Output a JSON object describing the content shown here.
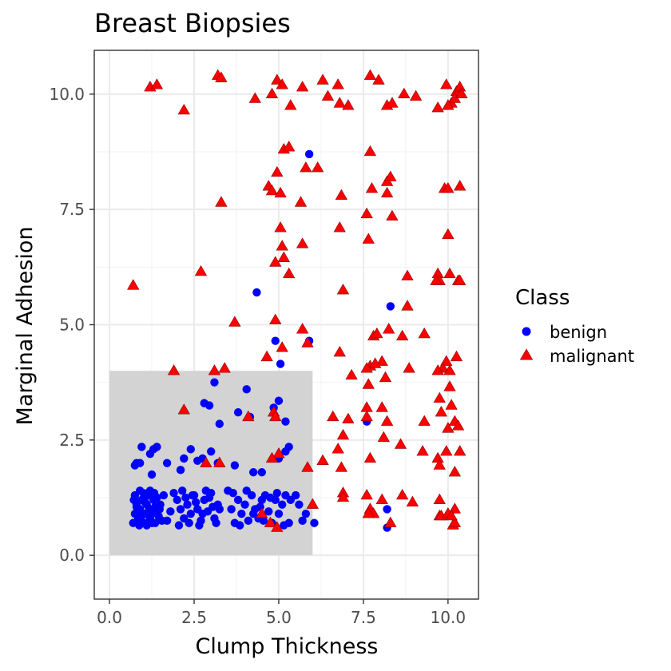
{
  "chart_data": {
    "type": "scatter",
    "title": "Breast Biopsies",
    "xlabel": "Clump Thickness",
    "ylabel": "Marginal Adhesion",
    "xlim": [
      -0.45,
      10.9
    ],
    "ylim": [
      -0.95,
      10.95
    ],
    "x_ticks": [
      0.0,
      2.5,
      5.0,
      7.5,
      10.0
    ],
    "x_tick_labels": [
      "0.0",
      "2.5",
      "5.0",
      "7.5",
      "10.0"
    ],
    "y_ticks": [
      0.0,
      2.5,
      5.0,
      7.5,
      10.0
    ],
    "y_tick_labels": [
      "0.0",
      "2.5",
      "5.0",
      "7.5",
      "10.0"
    ],
    "grid": true,
    "shaded_region": {
      "x": [
        0,
        6
      ],
      "y": [
        0,
        4
      ],
      "color": "#d3d3d3"
    },
    "legend": {
      "title": "Class",
      "placement": "right",
      "entries": [
        {
          "label": "benign",
          "color": "#0000ff",
          "shape": "circle"
        },
        {
          "label": "malignant",
          "color": "#ff0000",
          "shape": "triangle"
        }
      ]
    },
    "series": [
      {
        "name": "benign",
        "color": "#0000ff",
        "shape": "circle",
        "points": [
          [
            0.7,
            0.7
          ],
          [
            0.75,
            0.9
          ],
          [
            0.8,
            1.1
          ],
          [
            0.75,
            1.3
          ],
          [
            0.85,
            0.8
          ],
          [
            0.9,
            1.0
          ],
          [
            0.95,
            1.2
          ],
          [
            1.0,
            0.7
          ],
          [
            1.05,
            0.9
          ],
          [
            1.1,
            1.1
          ],
          [
            1.15,
            1.3
          ],
          [
            1.2,
            0.8
          ],
          [
            1.25,
            1.0
          ],
          [
            1.3,
            1.2
          ],
          [
            1.35,
            0.7
          ],
          [
            1.4,
            0.9
          ],
          [
            0.9,
            1.4
          ],
          [
            1.0,
            1.35
          ],
          [
            1.1,
            0.65
          ],
          [
            1.2,
            1.4
          ],
          [
            1.3,
            0.95
          ],
          [
            1.4,
            1.25
          ],
          [
            1.5,
            1.1
          ],
          [
            1.55,
            0.75
          ],
          [
            1.6,
            1.3
          ],
          [
            0.8,
            1.05
          ],
          [
            0.95,
            0.85
          ],
          [
            1.05,
            1.15
          ],
          [
            1.15,
            0.95
          ],
          [
            1.25,
            0.7
          ],
          [
            1.35,
            1.05
          ],
          [
            1.45,
            0.85
          ],
          [
            0.72,
            1.2
          ],
          [
            0.88,
            0.65
          ],
          [
            1.02,
            1.25
          ],
          [
            1.18,
            0.75
          ],
          [
            1.32,
            1.35
          ],
          [
            1.48,
            1.0
          ],
          [
            0.95,
            2.35
          ],
          [
            0.9,
            2.0
          ],
          [
            1.2,
            2.2
          ],
          [
            1.3,
            2.3
          ],
          [
            0.8,
            2.0
          ],
          [
            1.25,
            1.75
          ],
          [
            0.75,
            1.95
          ],
          [
            1.4,
            2.35
          ],
          [
            1.9,
            1.35
          ],
          [
            2.0,
            1.2
          ],
          [
            2.1,
            1.0
          ],
          [
            2.2,
            0.8
          ],
          [
            2.3,
            1.1
          ],
          [
            2.4,
            0.9
          ],
          [
            1.8,
            0.95
          ],
          [
            1.7,
            0.75
          ],
          [
            2.5,
            1.3
          ],
          [
            2.6,
            1.0
          ],
          [
            2.7,
            0.75
          ],
          [
            2.8,
            1.2
          ],
          [
            2.9,
            0.95
          ],
          [
            3.0,
            1.35
          ],
          [
            3.1,
            0.8
          ],
          [
            3.2,
            1.1
          ],
          [
            2.15,
            1.4
          ],
          [
            2.35,
            0.7
          ],
          [
            2.55,
            1.15
          ],
          [
            2.75,
            0.9
          ],
          [
            2.95,
            1.25
          ],
          [
            3.15,
            0.7
          ],
          [
            3.25,
            1.0
          ],
          [
            2.05,
            0.65
          ],
          [
            2.25,
            1.25
          ],
          [
            2.45,
            1.3
          ],
          [
            2.65,
            0.65
          ],
          [
            2.85,
            1.4
          ],
          [
            3.05,
            1.05
          ],
          [
            2.2,
            2.1
          ],
          [
            2.1,
            1.85
          ],
          [
            2.4,
            2.3
          ],
          [
            2.6,
            2.05
          ],
          [
            2.75,
            2.1
          ],
          [
            3.0,
            2.25
          ],
          [
            3.2,
            2.0
          ],
          [
            1.7,
            2.0
          ],
          [
            2.8,
            3.3
          ],
          [
            3.1,
            3.75
          ],
          [
            2.95,
            3.25
          ],
          [
            3.25,
            2.85
          ],
          [
            3.5,
            1.4
          ],
          [
            3.6,
            1.0
          ],
          [
            3.7,
            0.7
          ],
          [
            3.8,
            1.2
          ],
          [
            3.9,
            0.9
          ],
          [
            4.0,
            1.1
          ],
          [
            4.1,
            0.75
          ],
          [
            4.2,
            1.3
          ],
          [
            4.3,
            1.0
          ],
          [
            4.4,
            0.8
          ],
          [
            4.5,
            1.2
          ],
          [
            3.65,
            1.35
          ],
          [
            3.85,
            0.65
          ],
          [
            4.05,
            1.4
          ],
          [
            4.25,
            0.9
          ],
          [
            4.45,
            1.05
          ],
          [
            4.6,
            1.3
          ],
          [
            4.7,
            0.95
          ],
          [
            4.8,
            0.7
          ],
          [
            4.9,
            1.2
          ],
          [
            5.0,
            0.9
          ],
          [
            5.1,
            1.1
          ],
          [
            5.2,
            1.3
          ],
          [
            5.3,
            0.7
          ],
          [
            4.55,
            0.75
          ],
          [
            4.75,
            1.25
          ],
          [
            4.95,
            1.35
          ],
          [
            5.15,
            0.65
          ],
          [
            5.35,
            1.2
          ],
          [
            3.7,
            1.95
          ],
          [
            3.8,
            3.1
          ],
          [
            4.05,
            3.6
          ],
          [
            4.15,
            3.0
          ],
          [
            4.25,
            1.8
          ],
          [
            4.5,
            1.8
          ],
          [
            4.35,
            5.7
          ],
          [
            4.9,
            4.65
          ],
          [
            5.05,
            4.15
          ],
          [
            4.85,
            3.2
          ],
          [
            5.0,
            3.35
          ],
          [
            5.2,
            2.9
          ],
          [
            5.3,
            2.35
          ],
          [
            5.2,
            2.25
          ],
          [
            5.0,
            2.1
          ],
          [
            5.6,
            1.1
          ],
          [
            5.8,
            0.9
          ],
          [
            6.05,
            0.7
          ],
          [
            5.7,
            0.75
          ],
          [
            5.5,
            1.3
          ],
          [
            5.9,
            4.65
          ],
          [
            5.9,
            8.7
          ],
          [
            7.6,
            2.9
          ],
          [
            8.2,
            1.0
          ],
          [
            8.2,
            0.6
          ],
          [
            8.3,
            5.4
          ]
        ]
      },
      {
        "name": "malignant",
        "color": "#ff0000",
        "shape": "triangle",
        "points": [
          [
            1.2,
            10.15
          ],
          [
            1.4,
            10.2
          ],
          [
            2.2,
            9.65
          ],
          [
            3.2,
            10.4
          ],
          [
            3.3,
            10.35
          ],
          [
            4.3,
            9.9
          ],
          [
            4.8,
            10.0
          ],
          [
            4.95,
            10.3
          ],
          [
            5.1,
            10.2
          ],
          [
            5.35,
            9.75
          ],
          [
            5.7,
            10.15
          ],
          [
            6.3,
            10.3
          ],
          [
            6.45,
            9.95
          ],
          [
            6.75,
            10.2
          ],
          [
            6.8,
            9.8
          ],
          [
            7.05,
            9.75
          ],
          [
            7.7,
            10.4
          ],
          [
            7.95,
            10.3
          ],
          [
            8.2,
            9.75
          ],
          [
            8.35,
            9.8
          ],
          [
            8.7,
            10.0
          ],
          [
            9.05,
            9.95
          ],
          [
            9.7,
            9.7
          ],
          [
            9.95,
            10.2
          ],
          [
            10.1,
            9.8
          ],
          [
            10.25,
            10.05
          ],
          [
            10.35,
            10.15
          ],
          [
            10.2,
            9.9
          ],
          [
            10.4,
            10.0
          ],
          [
            10.0,
            9.75
          ],
          [
            0.7,
            5.85
          ],
          [
            2.7,
            6.15
          ],
          [
            3.3,
            7.65
          ],
          [
            3.7,
            5.05
          ],
          [
            4.7,
            8.0
          ],
          [
            4.8,
            7.9
          ],
          [
            4.95,
            8.3
          ],
          [
            5.05,
            7.85
          ],
          [
            5.15,
            8.8
          ],
          [
            5.3,
            8.85
          ],
          [
            5.05,
            7.1
          ],
          [
            5.1,
            6.7
          ],
          [
            5.15,
            6.45
          ],
          [
            5.3,
            6.1
          ],
          [
            4.9,
            6.35
          ],
          [
            5.65,
            7.65
          ],
          [
            5.8,
            8.4
          ],
          [
            6.15,
            8.4
          ],
          [
            5.7,
            6.75
          ],
          [
            4.9,
            5.1
          ],
          [
            5.7,
            4.9
          ],
          [
            4.65,
            4.3
          ],
          [
            5.1,
            4.5
          ],
          [
            5.85,
            4.6
          ],
          [
            6.8,
            7.1
          ],
          [
            6.85,
            7.8
          ],
          [
            6.9,
            5.75
          ],
          [
            6.8,
            4.4
          ],
          [
            7.6,
            7.4
          ],
          [
            7.65,
            6.85
          ],
          [
            7.7,
            8.75
          ],
          [
            7.75,
            7.95
          ],
          [
            8.2,
            8.1
          ],
          [
            8.3,
            8.2
          ],
          [
            8.35,
            7.35
          ],
          [
            8.2,
            7.85
          ],
          [
            8.8,
            6.05
          ],
          [
            8.8,
            5.4
          ],
          [
            8.65,
            4.75
          ],
          [
            8.25,
            4.9
          ],
          [
            7.8,
            4.75
          ],
          [
            7.9,
            4.8
          ],
          [
            8.05,
            4.2
          ],
          [
            7.7,
            4.1
          ],
          [
            7.85,
            4.15
          ],
          [
            7.6,
            4.05
          ],
          [
            7.15,
            3.9
          ],
          [
            7.65,
            3.7
          ],
          [
            8.15,
            3.85
          ],
          [
            8.85,
            4.05
          ],
          [
            9.3,
            4.8
          ],
          [
            9.7,
            6.1
          ],
          [
            9.75,
            5.95
          ],
          [
            9.65,
            5.95
          ],
          [
            10.05,
            6.1
          ],
          [
            10.3,
            5.95
          ],
          [
            10.35,
            5.95
          ],
          [
            10.0,
            6.95
          ],
          [
            9.9,
            7.95
          ],
          [
            10.0,
            7.95
          ],
          [
            10.35,
            8.0
          ],
          [
            9.95,
            4.2
          ],
          [
            9.85,
            4.05
          ],
          [
            9.7,
            4.0
          ],
          [
            10.05,
            4.0
          ],
          [
            10.25,
            4.3
          ],
          [
            10.05,
            3.65
          ],
          [
            10.1,
            3.25
          ],
          [
            9.75,
            3.4
          ],
          [
            9.8,
            3.1
          ],
          [
            10.2,
            2.9
          ],
          [
            10.3,
            2.8
          ],
          [
            10.0,
            2.75
          ],
          [
            10.35,
            2.25
          ],
          [
            9.95,
            2.25
          ],
          [
            9.7,
            2.1
          ],
          [
            9.75,
            1.95
          ],
          [
            10.2,
            1.8
          ],
          [
            9.25,
            2.25
          ],
          [
            9.3,
            2.9
          ],
          [
            8.6,
            2.4
          ],
          [
            8.1,
            2.55
          ],
          [
            8.2,
            2.9
          ],
          [
            8.05,
            3.2
          ],
          [
            7.6,
            3.2
          ],
          [
            7.6,
            3.0
          ],
          [
            7.05,
            2.95
          ],
          [
            6.9,
            2.6
          ],
          [
            6.75,
            2.3
          ],
          [
            6.6,
            3.0
          ],
          [
            7.7,
            2.1
          ],
          [
            6.85,
            1.9
          ],
          [
            6.3,
            2.05
          ],
          [
            6.9,
            1.35
          ],
          [
            6.9,
            1.25
          ],
          [
            7.6,
            1.3
          ],
          [
            7.7,
            1.0
          ],
          [
            8.05,
            1.2
          ],
          [
            7.8,
            0.9
          ],
          [
            7.65,
            0.9
          ],
          [
            8.65,
            1.3
          ],
          [
            8.95,
            1.15
          ],
          [
            8.3,
            0.7
          ],
          [
            9.75,
            1.2
          ],
          [
            9.75,
            0.85
          ],
          [
            9.8,
            0.85
          ],
          [
            10.2,
            1.0
          ],
          [
            10.15,
            0.65
          ],
          [
            10.2,
            0.7
          ],
          [
            10.0,
            0.9
          ],
          [
            10.1,
            0.85
          ],
          [
            1.9,
            4.0
          ],
          [
            2.2,
            3.15
          ],
          [
            3.1,
            4.0
          ],
          [
            3.4,
            4.05
          ],
          [
            4.1,
            3.0
          ],
          [
            4.85,
            3.1
          ],
          [
            4.9,
            3.0
          ],
          [
            5.0,
            2.2
          ],
          [
            4.8,
            2.1
          ],
          [
            3.25,
            2.0
          ],
          [
            2.85,
            2.0
          ],
          [
            4.5,
            0.9
          ],
          [
            4.75,
            0.7
          ],
          [
            4.95,
            0.6
          ],
          [
            5.85,
            1.9
          ],
          [
            6.0,
            1.1
          ]
        ]
      }
    ]
  }
}
